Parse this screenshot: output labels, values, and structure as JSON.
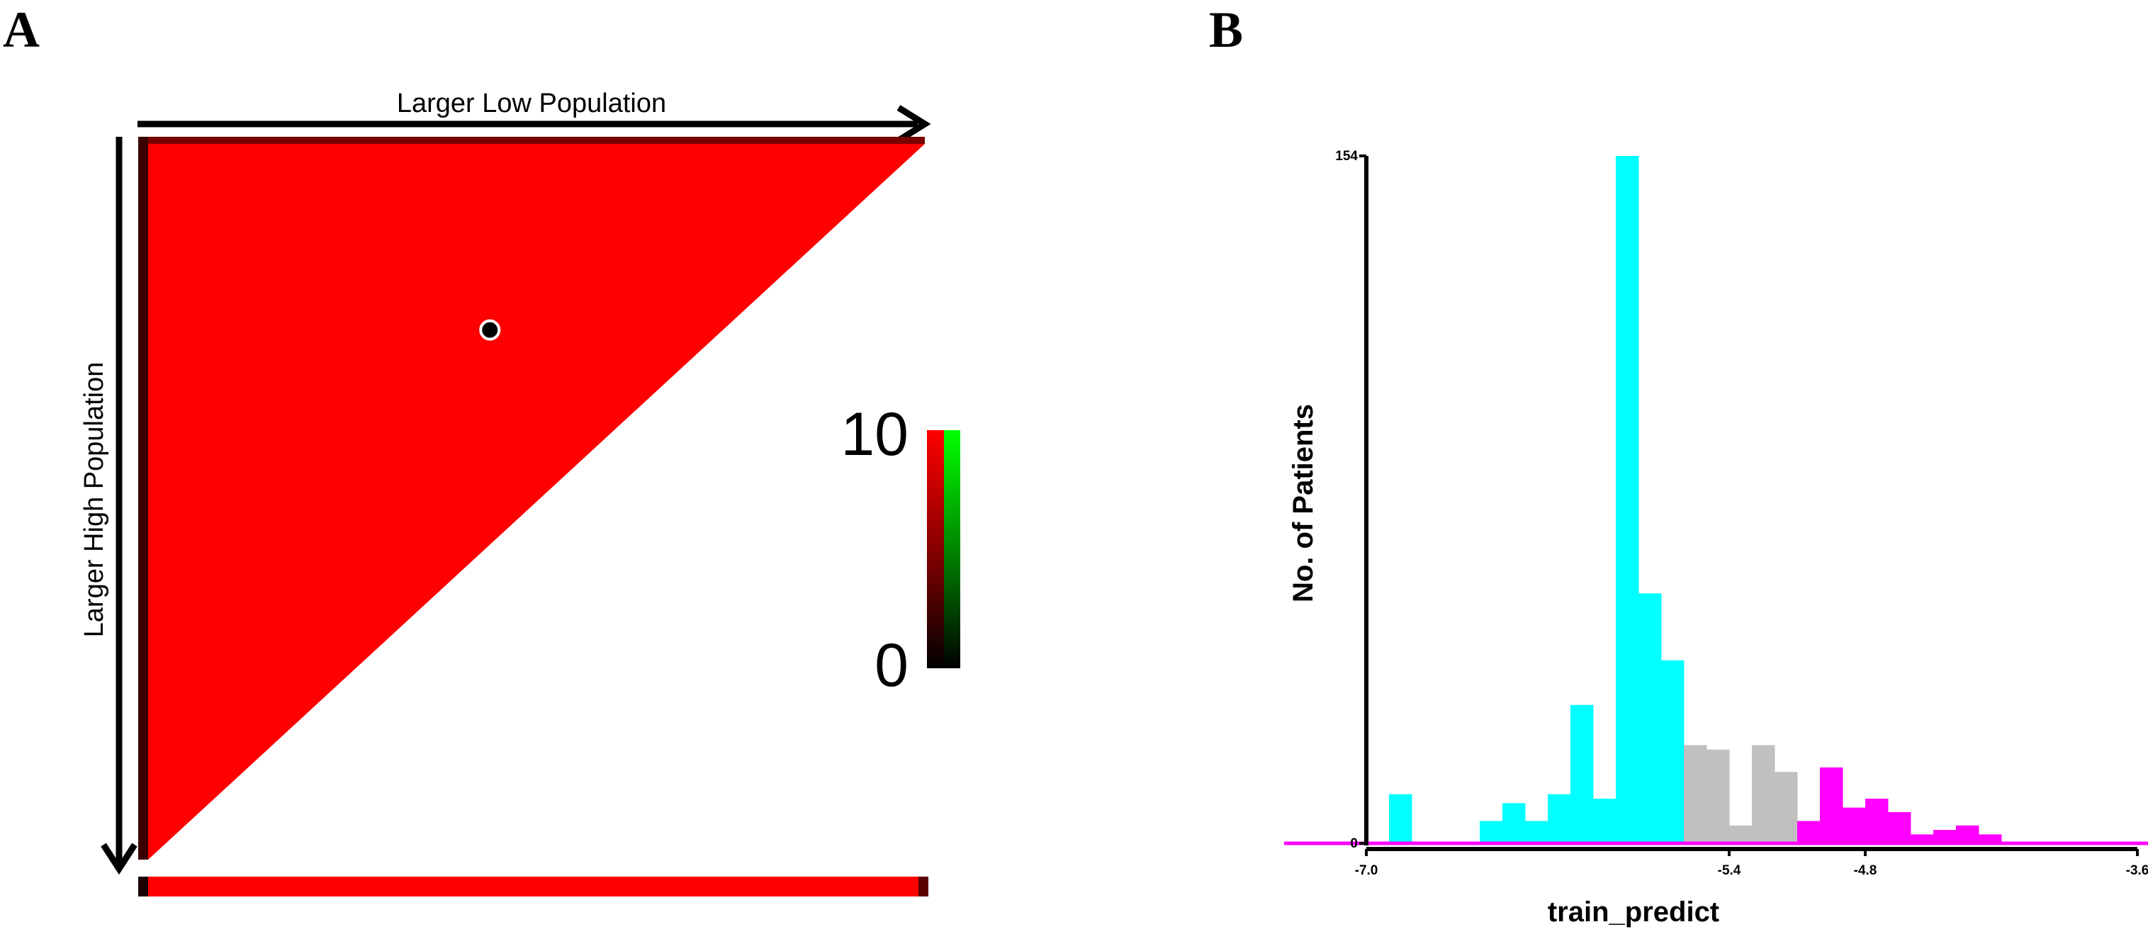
{
  "panels": {
    "a": {
      "letter": "A",
      "x_arrow_label": "Larger Low Population",
      "y_arrow_label": "Larger High Population",
      "colorbar": {
        "max_label": "10",
        "min_label": "0",
        "colors": [
          "#000000",
          "#ff0000",
          "#00ff00"
        ]
      },
      "fill_color": "#ff0000"
    },
    "b": {
      "letter": "B"
    }
  },
  "chart_data": [
    {
      "type": "heatmap",
      "shape": "upper-left triangle",
      "fill_color": "#ff0000",
      "marker": {
        "x_fraction": 0.44,
        "y_fraction": 0.26,
        "label": ""
      },
      "colorbar": {
        "min": 0,
        "max": 10
      },
      "xlabel": "Larger Low Population",
      "ylabel": "Larger High Population"
    },
    {
      "type": "bar",
      "xlabel": "train_predict",
      "ylabel": "No. of Patients",
      "xlim": [
        -7.0,
        -3.6
      ],
      "ylim": [
        0,
        154
      ],
      "y_ticks": [
        0,
        154
      ],
      "x_ticks": [
        -7.0,
        -5.4,
        -4.8,
        -3.6
      ],
      "bin_width": 0.1,
      "bins": [
        {
          "x": -6.9,
          "count": 11,
          "group": "low"
        },
        {
          "x": -6.8,
          "count": 0,
          "group": "low"
        },
        {
          "x": -6.7,
          "count": 0,
          "group": "low"
        },
        {
          "x": -6.6,
          "count": 0,
          "group": "low"
        },
        {
          "x": -6.5,
          "count": 5,
          "group": "low"
        },
        {
          "x": -6.4,
          "count": 9,
          "group": "low"
        },
        {
          "x": -6.3,
          "count": 5,
          "group": "low"
        },
        {
          "x": -6.2,
          "count": 11,
          "group": "low"
        },
        {
          "x": -6.1,
          "count": 31,
          "group": "low"
        },
        {
          "x": -6.0,
          "count": 10,
          "group": "low"
        },
        {
          "x": -5.9,
          "count": 154,
          "group": "low"
        },
        {
          "x": -5.8,
          "count": 56,
          "group": "low"
        },
        {
          "x": -5.7,
          "count": 41,
          "group": "low"
        },
        {
          "x": -5.6,
          "count": 22,
          "group": "mid"
        },
        {
          "x": -5.5,
          "count": 21,
          "group": "mid"
        },
        {
          "x": -5.4,
          "count": 4,
          "group": "mid"
        },
        {
          "x": -5.3,
          "count": 22,
          "group": "mid"
        },
        {
          "x": -5.2,
          "count": 16,
          "group": "mid"
        },
        {
          "x": -5.1,
          "count": 5,
          "group": "high"
        },
        {
          "x": -5.0,
          "count": 17,
          "group": "high"
        },
        {
          "x": -4.9,
          "count": 8,
          "group": "high"
        },
        {
          "x": -4.8,
          "count": 10,
          "group": "high"
        },
        {
          "x": -4.7,
          "count": 7,
          "group": "high"
        },
        {
          "x": -4.6,
          "count": 2,
          "group": "high"
        },
        {
          "x": -4.5,
          "count": 3,
          "group": "high"
        },
        {
          "x": -4.4,
          "count": 4,
          "group": "high"
        },
        {
          "x": -4.3,
          "count": 2,
          "group": "high"
        },
        {
          "x": -4.2,
          "count": 0,
          "group": "high"
        },
        {
          "x": -4.1,
          "count": 0,
          "group": "high"
        }
      ],
      "group_colors": {
        "low": "#00ffff",
        "mid": "#c0c0c0",
        "high": "#ff00ff"
      }
    }
  ]
}
